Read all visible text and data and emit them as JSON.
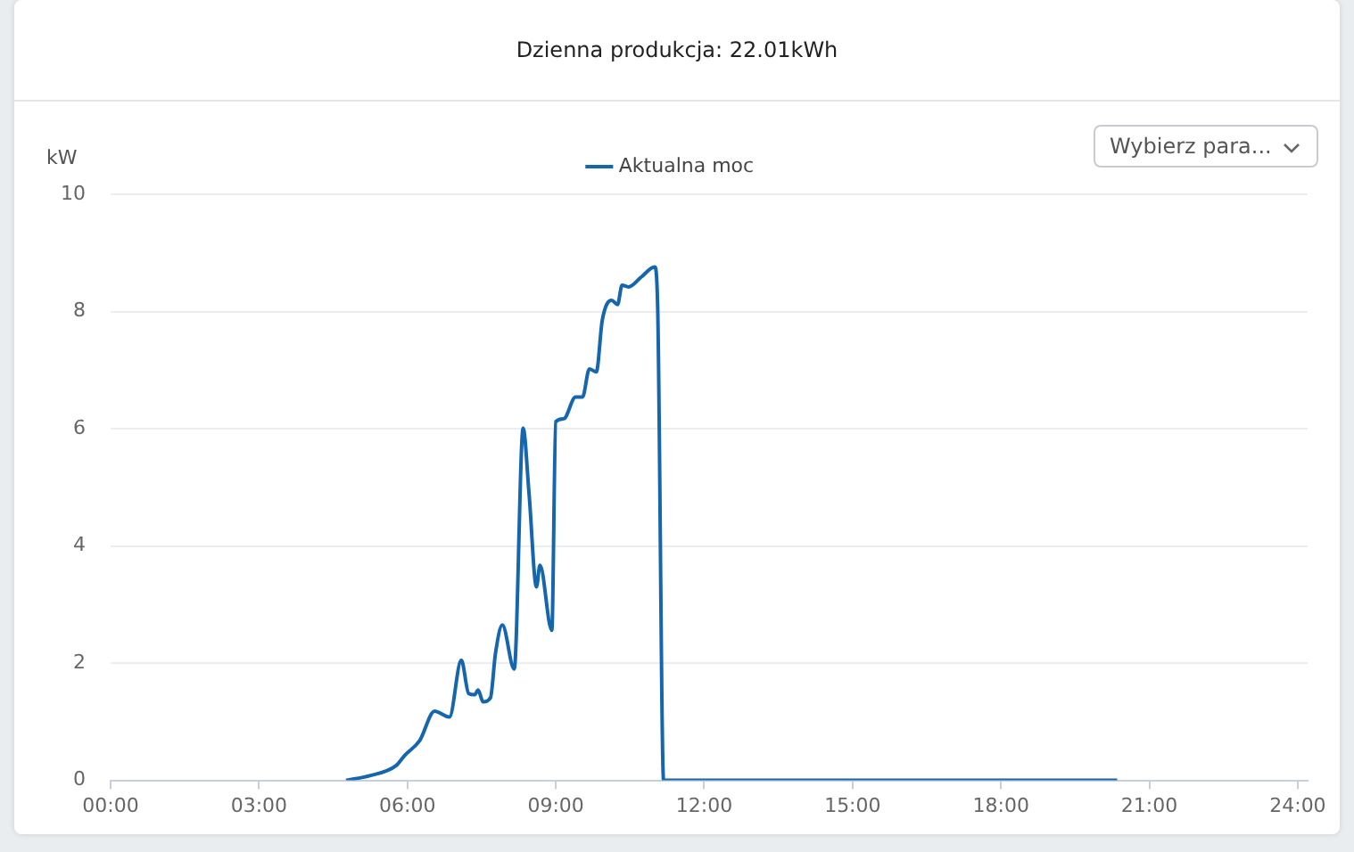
{
  "chart_data": {
    "type": "line",
    "title": "Dzienna produkcja: 22.01kWh",
    "ylabel": "kW",
    "annotations": [
      "Wybierz para..."
    ],
    "x": [
      4.76,
      5.24,
      5.77,
      5.95,
      6.25,
      6.55,
      6.85,
      7.09,
      7.24,
      7.36,
      7.43,
      7.53,
      7.68,
      7.78,
      7.92,
      8.16,
      8.34,
      8.46,
      8.61,
      8.68,
      8.92,
      9.0,
      9.16,
      9.4,
      9.54,
      9.68,
      9.82,
      9.94,
      10.13,
      10.25,
      10.34,
      10.47,
      10.73,
      11.0,
      11.06,
      11.18,
      20.35
    ],
    "series": [
      {
        "name": "Aktualna moc",
        "color": "#1666ae",
        "values": [
          0,
          0.08,
          0.25,
          0.43,
          0.68,
          1.18,
          1.08,
          2.05,
          1.48,
          1.46,
          1.54,
          1.34,
          1.41,
          2.16,
          2.65,
          1.9,
          6.01,
          4.89,
          3.3,
          3.67,
          2.56,
          6.12,
          6.17,
          6.54,
          6.54,
          7.02,
          6.97,
          7.85,
          8.19,
          8.12,
          8.45,
          8.42,
          8.59,
          8.76,
          8.08,
          0,
          0
        ]
      }
    ],
    "xlim": [
      0,
      24.2
    ],
    "xticks": [
      {
        "value": 0,
        "label": "00:00"
      },
      {
        "value": 3,
        "label": "03:00"
      },
      {
        "value": 6,
        "label": "06:00"
      },
      {
        "value": 9,
        "label": "09:00"
      },
      {
        "value": 12,
        "label": "12:00"
      },
      {
        "value": 15,
        "label": "15:00"
      },
      {
        "value": 18,
        "label": "18:00"
      },
      {
        "value": 21,
        "label": "21:00"
      },
      {
        "value": 24,
        "label": "24:00"
      }
    ],
    "ylim": [
      0,
      10
    ],
    "yticks": [
      0,
      2,
      4,
      6,
      8,
      10
    ],
    "grid": "y",
    "legend": "top",
    "marker": "none",
    "line_style": "solid"
  }
}
